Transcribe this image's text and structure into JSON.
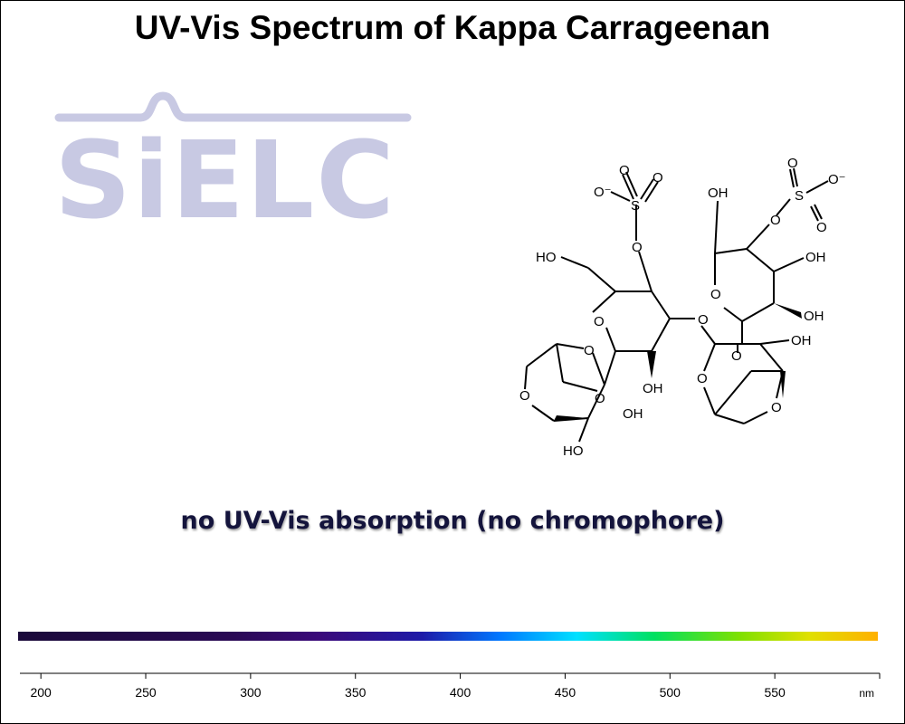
{
  "title": "UV-Vis Spectrum of Kappa Carrageenan",
  "logo": {
    "text": "SiELC",
    "color": "#c8c9e3"
  },
  "note": "no UV-Vis absorption (no chromophore)",
  "structure_labels": {
    "o_minus_1": "O⁻",
    "o_minus_2": "O⁻",
    "oh_top": "OH",
    "ho_left": "HO",
    "oh_ring2_a": "OH",
    "oh_ring2_b": "OH",
    "oh_ring2_c": "OH",
    "oh_ring1_bottom": "OH",
    "oh_bicyc_left": "OH",
    "ho_bottom": "HO"
  },
  "chart_data": {
    "type": "spectrum",
    "title": "UV-Vis Spectrum of Kappa Carrageenan",
    "xlabel": "",
    "x_unit": "nm",
    "xlim": [
      190,
      600
    ],
    "xticks": [
      200,
      250,
      300,
      350,
      400,
      450,
      500,
      550
    ],
    "annotation": "no UV-Vis absorption (no chromophore)",
    "series": []
  }
}
